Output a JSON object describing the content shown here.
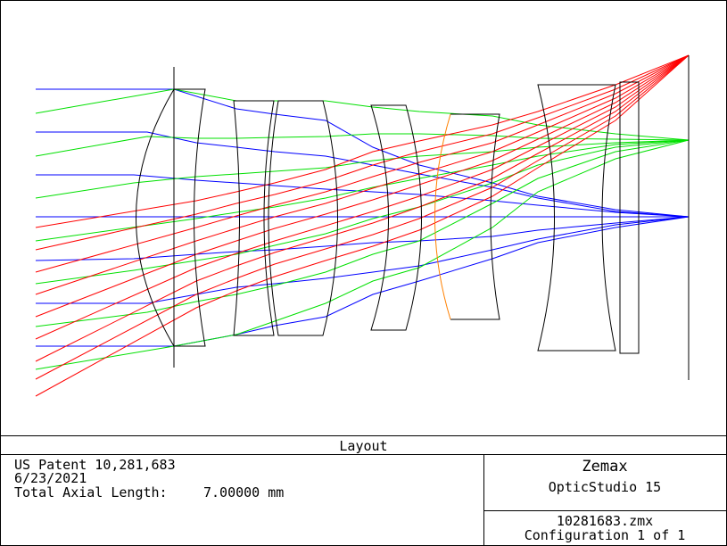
{
  "plot": {
    "title": "Layout"
  },
  "footer": {
    "patent": "US Patent 10,281,683",
    "date": "6/23/2021",
    "axial_label": "Total Axial Length:",
    "axial_value": "7.00000 mm",
    "software": "Zemax",
    "version": "OpticStudio 15",
    "file": "10281683.zmx",
    "config": "Configuration 1 of 1"
  },
  "colors": {
    "field1": "#0000ff",
    "field2": "#00e000",
    "field3": "#ff0000",
    "highlight": "#ff8000"
  }
}
